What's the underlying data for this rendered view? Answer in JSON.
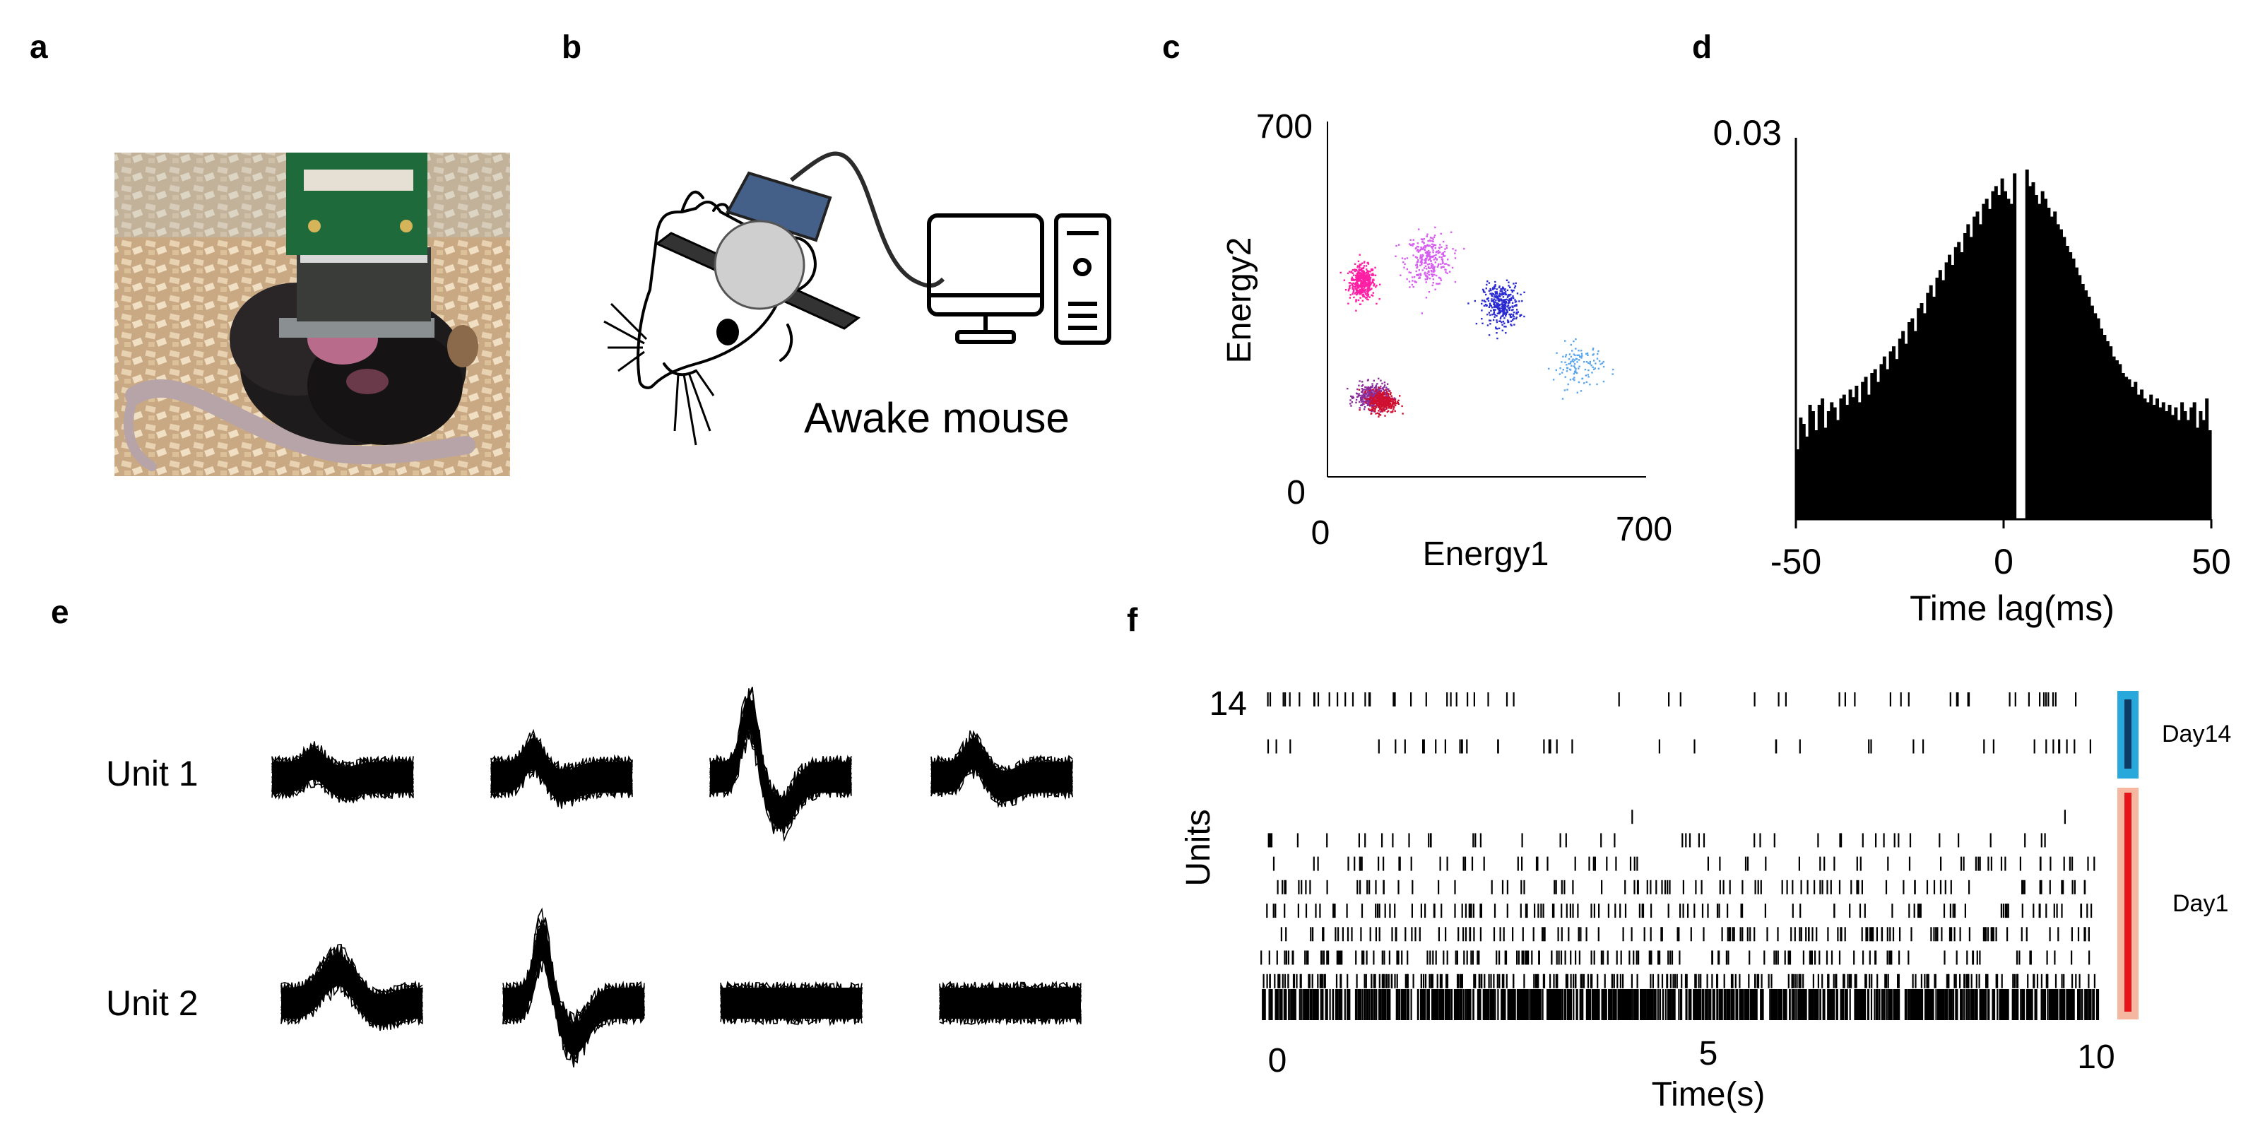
{
  "panel_labels": {
    "a": "a",
    "b": "b",
    "c": "c",
    "d": "d",
    "e": "e",
    "f": "f"
  },
  "panel_a": {
    "image": "photo of a mouse in bedding with a head-mounted recording board"
  },
  "panel_b": {
    "caption": "Awake mouse",
    "icons": [
      "mouse-head-icon",
      "headstage-icon",
      "monitor-icon",
      "computer-tower-icon"
    ]
  },
  "colors": {
    "magenta": "#ff1fa4",
    "violet": "#d75df0",
    "blue": "#2b2bd2",
    "light_blue": "#5aa5ec",
    "red": "#cf1030",
    "day14_outer": "#29a8dc",
    "day14_inner": "#0e3a66",
    "day1_outer": "#f6b7a0",
    "day1_inner": "#e8141c"
  },
  "chart_data": [
    {
      "panel": "c",
      "type": "scatter",
      "xlabel": "Energy1",
      "ylabel": "Energy2",
      "xlim": [
        0,
        700
      ],
      "ylim": [
        0,
        700
      ],
      "x_ticks": [
        "0",
        "700"
      ],
      "y_ticks": [
        "0",
        "700"
      ],
      "clusters": [
        {
          "color": "#ff1fa4",
          "center": [
            75,
            385
          ],
          "spread": [
            25,
            30
          ],
          "n": 450
        },
        {
          "color": "#d75df0",
          "center": [
            220,
            430
          ],
          "spread": [
            45,
            48
          ],
          "n": 300
        },
        {
          "color": "#2b2bd2",
          "center": [
            380,
            340
          ],
          "spread": [
            35,
            38
          ],
          "n": 350
        },
        {
          "color": "#5aa5ec",
          "center": [
            550,
            220
          ],
          "spread": [
            50,
            40
          ],
          "n": 120
        },
        {
          "color": "#8a2c9a",
          "center": [
            95,
            160
          ],
          "spread": [
            32,
            22
          ],
          "n": 350
        },
        {
          "color": "#cf1030",
          "center": [
            120,
            150
          ],
          "spread": [
            28,
            20
          ],
          "n": 350
        }
      ]
    },
    {
      "panel": "d",
      "type": "bar",
      "xlabel": "Time lag(ms)",
      "ylabel": "",
      "xlim": [
        -50,
        50
      ],
      "ylim": [
        0,
        0.03
      ],
      "x_ticks": [
        "-50",
        "0",
        "50"
      ],
      "y_ticks": [
        "0.03"
      ],
      "values": [
        0.0055,
        0.008,
        0.0075,
        0.0065,
        0.009,
        0.0085,
        0.007,
        0.009,
        0.0095,
        0.0072,
        0.0085,
        0.0092,
        0.0088,
        0.0078,
        0.0095,
        0.0098,
        0.009,
        0.0102,
        0.0096,
        0.0105,
        0.0092,
        0.0108,
        0.0112,
        0.0098,
        0.0115,
        0.0118,
        0.0108,
        0.0122,
        0.0128,
        0.0118,
        0.0132,
        0.0136,
        0.0126,
        0.0142,
        0.0148,
        0.0138,
        0.0155,
        0.0158,
        0.0148,
        0.0166,
        0.017,
        0.0162,
        0.0178,
        0.0184,
        0.0175,
        0.019,
        0.0196,
        0.0188,
        0.0202,
        0.0208,
        0.02,
        0.0214,
        0.0218,
        0.021,
        0.0225,
        0.0232,
        0.0222,
        0.0238,
        0.0242,
        0.0232,
        0.0248,
        0.0252,
        0.0244,
        0.0258,
        0.0262,
        0.0255,
        0.0268,
        0.0258,
        0.0252,
        0.0248,
        0.0272,
        0.0,
        0.0,
        0.0,
        0.0275,
        0.0262,
        0.0265,
        0.0255,
        0.0248,
        0.0258,
        0.0252,
        0.0245,
        0.0238,
        0.0242,
        0.0232,
        0.0228,
        0.0222,
        0.0215,
        0.021,
        0.0205,
        0.0198,
        0.0192,
        0.0185,
        0.018,
        0.0175,
        0.0168,
        0.0162,
        0.0158,
        0.015,
        0.0145,
        0.014,
        0.0136,
        0.0128,
        0.0125,
        0.0122,
        0.0115,
        0.0112,
        0.011,
        0.0104,
        0.0108,
        0.0098,
        0.0102,
        0.0095,
        0.0092,
        0.0098,
        0.009,
        0.0095,
        0.0088,
        0.0092,
        0.0085,
        0.009,
        0.0082,
        0.0088,
        0.0078,
        0.0092,
        0.0085,
        0.0078,
        0.0088,
        0.0092,
        0.0072,
        0.0085,
        0.0078,
        0.0095,
        0.007
      ]
    },
    {
      "panel": "e",
      "type": "line",
      "row_labels": [
        "Unit 1",
        "Unit 2"
      ],
      "waveforms": [
        {
          "unit": 1,
          "channel": 1,
          "amplitude": 0.25,
          "shape": "small"
        },
        {
          "unit": 1,
          "channel": 2,
          "amplitude": 0.45,
          "shape": "small"
        },
        {
          "unit": 1,
          "channel": 3,
          "amplitude": 1.0,
          "shape": "large"
        },
        {
          "unit": 1,
          "channel": 4,
          "amplitude": 0.45,
          "shape": "small"
        },
        {
          "unit": 2,
          "channel": 1,
          "amplitude": 0.55,
          "shape": "broad"
        },
        {
          "unit": 2,
          "channel": 2,
          "amplitude": 1.0,
          "shape": "large"
        },
        {
          "unit": 2,
          "channel": 3,
          "amplitude": 0.2,
          "shape": "flat"
        },
        {
          "unit": 2,
          "channel": 4,
          "amplitude": 0.15,
          "shape": "flat"
        }
      ]
    },
    {
      "panel": "f",
      "type": "scatter",
      "xlabel": "Time(s)",
      "ylabel": "Units",
      "xlim": [
        0,
        10
      ],
      "x_ticks": [
        "0",
        "5",
        "10"
      ],
      "y_ticks": [
        "14"
      ],
      "unit_count": 14,
      "spike_counts": [
        55,
        0,
        40,
        0,
        0,
        2,
        45,
        65,
        90,
        110,
        130,
        150,
        250,
        900
      ],
      "day_labels": [
        "Day14",
        "Day1"
      ]
    }
  ]
}
